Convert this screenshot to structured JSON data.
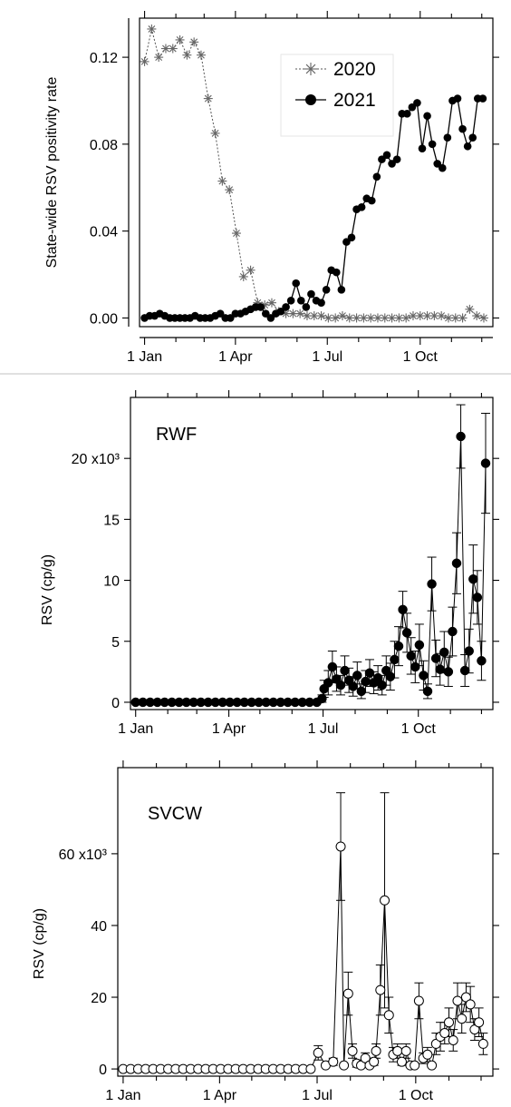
{
  "chart_data": [
    {
      "type": "line",
      "ylabel": "State-wide RSV positivity rate",
      "xlabel": "",
      "x_ticks": [
        "1 Jan",
        "1 Apr",
        "1 Jul",
        "1 Oct"
      ],
      "y_ticks": [
        "0.00",
        "0.04",
        "0.08",
        "0.12"
      ],
      "ylim": [
        -0.004,
        0.138
      ],
      "xlim_day": [
        -5,
        345
      ],
      "legend": [
        "2020",
        "2021"
      ],
      "legend_position": "top-center",
      "series": [
        {
          "name": "2020",
          "style": "dotted-asterisk",
          "x_day": [
            0,
            7,
            14,
            21,
            28,
            35,
            42,
            49,
            56,
            63,
            70,
            77,
            84,
            91,
            98,
            105,
            112,
            119,
            126,
            133,
            140,
            147,
            154,
            161,
            168,
            175,
            182,
            189,
            196,
            203,
            210,
            217,
            224,
            231,
            238,
            245,
            252,
            259,
            266,
            273,
            280,
            287,
            294,
            301,
            308,
            315,
            322,
            329,
            336
          ],
          "y": [
            0.118,
            0.133,
            0.12,
            0.124,
            0.124,
            0.128,
            0.121,
            0.127,
            0.121,
            0.101,
            0.085,
            0.063,
            0.059,
            0.039,
            0.019,
            0.022,
            0.007,
            0.006,
            0.007,
            0.003,
            0.002,
            0.002,
            0.002,
            0.001,
            0.001,
            0.001,
            0.0,
            0.0,
            0.001,
            0.0,
            0.0,
            0.0,
            0.0,
            0.0,
            0.0,
            0.0,
            0.0,
            0.0,
            0.001,
            0.001,
            0.001,
            0.001,
            0.001,
            0.0,
            0.0,
            0.0,
            0.004,
            0.001,
            0.0
          ]
        },
        {
          "name": "2021",
          "style": "solid-filled-circle",
          "x_day": [
            0,
            5,
            10,
            15,
            20,
            25,
            30,
            35,
            40,
            45,
            50,
            55,
            60,
            65,
            70,
            75,
            80,
            85,
            90,
            95,
            100,
            105,
            110,
            115,
            120,
            125,
            130,
            135,
            140,
            145,
            150,
            155,
            160,
            165,
            170,
            175,
            180,
            185,
            190,
            195,
            200,
            205,
            210,
            215,
            220,
            225,
            230,
            235,
            240,
            245,
            250,
            255,
            260,
            265,
            270,
            275,
            280,
            285,
            290,
            295,
            300,
            305,
            310,
            315,
            320,
            325,
            330,
            335
          ],
          "y": [
            0.0,
            0.001,
            0.001,
            0.002,
            0.001,
            0.0,
            0.0,
            0.0,
            0.0,
            0.0,
            0.001,
            0.0,
            0.0,
            0.0,
            0.001,
            0.002,
            0.0,
            0.0,
            0.002,
            0.002,
            0.003,
            0.004,
            0.005,
            0.005,
            0.002,
            0.0,
            0.002,
            0.003,
            0.005,
            0.008,
            0.016,
            0.008,
            0.005,
            0.011,
            0.008,
            0.007,
            0.013,
            0.022,
            0.021,
            0.013,
            0.035,
            0.037,
            0.05,
            0.051,
            0.055,
            0.054,
            0.065,
            0.073,
            0.075,
            0.071,
            0.073,
            0.094,
            0.094,
            0.097,
            0.099,
            0.078,
            0.093,
            0.08,
            0.071,
            0.069,
            0.083,
            0.1,
            0.101,
            0.087,
            0.079,
            0.083,
            0.101,
            0.101
          ]
        }
      ]
    },
    {
      "type": "scatter",
      "title": "RWF",
      "ylabel": "RSV (cp/g)",
      "xlabel": "",
      "x_ticks": [
        "1 Jan",
        "1 Apr",
        "1 Jul",
        "1 Oct"
      ],
      "y_ticks": [
        "0",
        "5",
        "10",
        "15",
        "20 x10³"
      ],
      "y_multiplier": "x10³",
      "ylim": [
        -0.6,
        25.0
      ],
      "xlim_day": [
        -5,
        345
      ],
      "series": [
        {
          "name": "",
          "style": "filled-circle-errorbars",
          "x_day": [
            0,
            7,
            14,
            21,
            28,
            35,
            42,
            49,
            56,
            63,
            70,
            77,
            84,
            91,
            98,
            105,
            112,
            119,
            126,
            133,
            140,
            147,
            154,
            161,
            168,
            175,
            180,
            182,
            186,
            190,
            194,
            198,
            202,
            206,
            210,
            214,
            218,
            222,
            226,
            230,
            234,
            238,
            242,
            246,
            250,
            254,
            258,
            262,
            266,
            270,
            274,
            278,
            282,
            286,
            290,
            294,
            298,
            302,
            306,
            310,
            314,
            318,
            322,
            326,
            330,
            334,
            338
          ],
          "y": [
            0,
            0,
            0,
            0,
            0,
            0,
            0,
            0,
            0,
            0,
            0,
            0,
            0,
            0,
            0,
            0,
            0,
            0,
            0,
            0,
            0,
            0,
            0,
            0,
            0,
            0,
            0.3,
            1.1,
            1.6,
            2.9,
            1.9,
            1.4,
            2.6,
            1.8,
            1.3,
            2.2,
            0.9,
            1.7,
            2.4,
            1.6,
            2.0,
            1.4,
            2.6,
            2.1,
            3.5,
            4.6,
            7.6,
            5.7,
            3.8,
            2.9,
            4.7,
            2.2,
            0.9,
            9.7,
            3.6,
            2.7,
            4.1,
            2.5,
            5.8,
            11.4,
            21.8,
            2.6,
            4.2,
            10.1,
            8.6,
            3.4,
            19.6
          ],
          "err": [
            0,
            0,
            0,
            0,
            0,
            0,
            0,
            0,
            0,
            0,
            0,
            0,
            0,
            0,
            0,
            0,
            0,
            0,
            0,
            0,
            0,
            0,
            0,
            0,
            0,
            0,
            0.3,
            0.7,
            1.0,
            1.3,
            1.0,
            0.8,
            1.2,
            1.0,
            0.8,
            1.1,
            0.6,
            0.9,
            1.1,
            0.9,
            1.0,
            0.8,
            1.2,
            1.1,
            1.5,
            1.6,
            1.5,
            1.6,
            1.5,
            1.3,
            1.7,
            1.2,
            0.6,
            2.2,
            1.5,
            1.3,
            1.7,
            1.2,
            2.0,
            2.5,
            2.6,
            1.3,
            1.8,
            2.8,
            2.2,
            1.6,
            4.1
          ]
        }
      ]
    },
    {
      "type": "scatter",
      "title": "SVCW",
      "ylabel": "RSV (cp/g)",
      "xlabel": "",
      "x_ticks": [
        "1 Jan",
        "1 Apr",
        "1 Jul",
        "1 Oct"
      ],
      "y_ticks": [
        "0",
        "20",
        "40",
        "60 x10³"
      ],
      "y_multiplier": "x10³",
      "ylim": [
        -2.0,
        84.0
      ],
      "xlim_day": [
        -5,
        345
      ],
      "series": [
        {
          "name": "",
          "style": "open-circle-errorbars",
          "x_day": [
            0,
            7,
            14,
            21,
            28,
            35,
            42,
            49,
            56,
            63,
            70,
            77,
            84,
            91,
            98,
            105,
            112,
            119,
            126,
            133,
            140,
            147,
            154,
            161,
            168,
            175,
            182,
            189,
            196,
            203,
            206,
            210,
            214,
            218,
            222,
            226,
            230,
            234,
            236,
            240,
            244,
            248,
            252,
            256,
            260,
            264,
            268,
            272,
            276,
            280,
            284,
            288,
            292,
            296,
            300,
            304,
            308,
            312,
            316,
            320,
            324,
            328,
            332,
            336
          ],
          "y": [
            0,
            0,
            0,
            0,
            0,
            0,
            0,
            0,
            0,
            0,
            0,
            0,
            0,
            0,
            0,
            0,
            0,
            0,
            0,
            0,
            0,
            0,
            0,
            0,
            0,
            0,
            4.5,
            1.0,
            2.0,
            62.0,
            1.0,
            21.0,
            5.0,
            1.5,
            1.0,
            3.0,
            1.0,
            2.0,
            5.0,
            22.0,
            47.0,
            15.0,
            4.0,
            5.0,
            2.0,
            5.0,
            1.0,
            1.0,
            19.0,
            3.0,
            4.0,
            1.0,
            7.0,
            9.0,
            10.0,
            13.0,
            8.0,
            19.0,
            14.0,
            20.0,
            18.0,
            11.0,
            13.0,
            7.0
          ],
          "err": [
            0,
            0,
            0,
            0,
            0,
            0,
            0,
            0,
            0,
            0,
            0,
            0,
            0,
            0,
            0,
            0,
            0,
            0,
            0,
            0,
            0,
            0,
            0,
            0,
            0,
            0,
            2.0,
            0.5,
            1.0,
            15.0,
            0.5,
            6.0,
            2.0,
            1.0,
            0.5,
            1.5,
            0.5,
            1.0,
            2.0,
            7.0,
            30.0,
            5.0,
            2.0,
            2.0,
            1.0,
            2.0,
            0.5,
            0.5,
            5.0,
            1.5,
            2.0,
            0.5,
            3.0,
            4.0,
            3.0,
            4.0,
            3.0,
            5.0,
            4.0,
            4.0,
            5.0,
            3.0,
            4.0,
            3.0
          ]
        }
      ]
    }
  ]
}
